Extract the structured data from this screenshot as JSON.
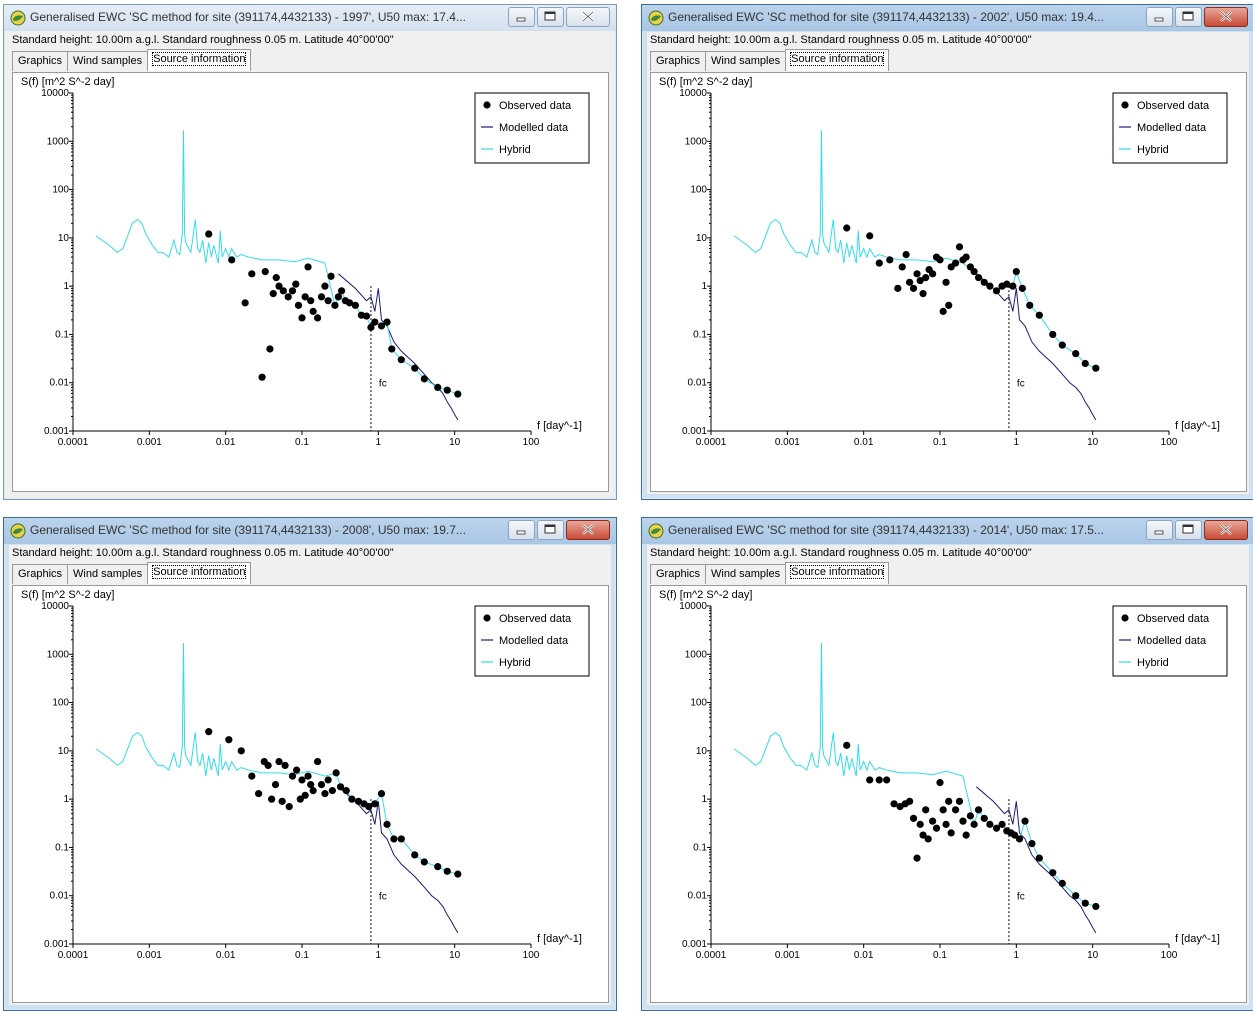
{
  "windows": [
    {
      "id": "w1",
      "title": "Generalised EWC 'SC method for site (391174,4432133) - 1997', U50 max: 17.4...",
      "active": false,
      "info": "Standard height: 10.00m a.g.l. Standard roughness 0.05 m. Latitude 40°00'00\"",
      "tabs": [
        "Graphics",
        "Wind samples",
        "Source information"
      ],
      "selected_tab": "Source information"
    },
    {
      "id": "w2",
      "title": "Generalised EWC 'SC method for site (391174,4432133) - 2002', U50 max: 19.4...",
      "active": true,
      "info": "Standard height: 10.00m a.g.l. Standard roughness 0.05 m. Latitude 40°00'00\"",
      "tabs": [
        "Graphics",
        "Wind samples",
        "Source information"
      ],
      "selected_tab": "Source information"
    },
    {
      "id": "w3",
      "title": "Generalised EWC 'SC method for site (391174,4432133) - 2008', U50 max: 19.7...",
      "active": true,
      "info": "Standard height: 10.00m a.g.l. Standard roughness 0.05 m. Latitude 40°00'00\"",
      "tabs": [
        "Graphics",
        "Wind samples",
        "Source information"
      ],
      "selected_tab": "Source information"
    },
    {
      "id": "w4",
      "title": "Generalised EWC 'SC method for site (391174,4432133) - 2014', U50 max: 17.5...",
      "active": true,
      "info": "Standard height: 10.00m a.g.l. Standard roughness 0.05 m. Latitude 40°00'00\"",
      "tabs": [
        "Graphics",
        "Wind samples",
        "Source information"
      ],
      "selected_tab": "Source information"
    }
  ],
  "chart_common": {
    "ylabel": "S(f) [m^2 S^-2 day]",
    "xlabel": "f [day^-1]",
    "fc_label": "fc",
    "x_ticks": [
      "0.0001",
      "0.001",
      "0.01",
      "0.1",
      "1",
      "10",
      "100"
    ],
    "y_ticks": [
      "0.001",
      "0.01",
      "0.1",
      "1",
      "10",
      "100",
      "1000",
      "10000"
    ],
    "legend": [
      "Observed data",
      "Modelled data",
      "Hybrid"
    ],
    "colors": {
      "observed": "#000000",
      "modelled": "#1a1a7a",
      "hybrid": "#33dde8"
    }
  },
  "chart_data": [
    {
      "type": "scatter",
      "title": "",
      "xlabel": "f [day^-1]",
      "ylabel": "S(f) [m^2 S^-2 day]",
      "x_scale": "log",
      "y_scale": "log",
      "xlim": [
        0.0001,
        100
      ],
      "ylim": [
        0.001,
        10000
      ],
      "fc": 0.8,
      "legend_position": "top-right",
      "series": [
        {
          "name": "Observed data",
          "points": [
            [
              0.006,
              12
            ],
            [
              0.012,
              3.5
            ],
            [
              0.018,
              0.45
            ],
            [
              0.022,
              1.8
            ],
            [
              0.03,
              0.013
            ],
            [
              0.033,
              2
            ],
            [
              0.038,
              0.05
            ],
            [
              0.042,
              0.7
            ],
            [
              0.046,
              1.5
            ],
            [
              0.05,
              1
            ],
            [
              0.057,
              0.8
            ],
            [
              0.066,
              0.6
            ],
            [
              0.075,
              0.8
            ],
            [
              0.083,
              1.1
            ],
            [
              0.09,
              0.4
            ],
            [
              0.1,
              0.22
            ],
            [
              0.11,
              0.6
            ],
            [
              0.12,
              2.5
            ],
            [
              0.13,
              0.5
            ],
            [
              0.14,
              0.3
            ],
            [
              0.16,
              0.22
            ],
            [
              0.18,
              0.6
            ],
            [
              0.2,
              1
            ],
            [
              0.22,
              0.5
            ],
            [
              0.24,
              1.6
            ],
            [
              0.27,
              0.4
            ],
            [
              0.3,
              0.6
            ],
            [
              0.33,
              0.8
            ],
            [
              0.37,
              0.5
            ],
            [
              0.42,
              0.45
            ],
            [
              0.5,
              0.4
            ],
            [
              0.6,
              0.25
            ],
            [
              0.7,
              0.24
            ],
            [
              0.8,
              0.14
            ],
            [
              0.9,
              0.18
            ],
            [
              1.1,
              0.15
            ],
            [
              1.3,
              0.18
            ],
            [
              1.5,
              0.05
            ],
            [
              2,
              0.03
            ],
            [
              3,
              0.02
            ],
            [
              4,
              0.012
            ],
            [
              6,
              0.008
            ],
            [
              8,
              0.007
            ],
            [
              11,
              0.0058
            ]
          ]
        }
      ]
    },
    {
      "type": "scatter",
      "title": "",
      "xlabel": "f [day^-1]",
      "ylabel": "S(f) [m^2 S^-2 day]",
      "x_scale": "log",
      "y_scale": "log",
      "xlim": [
        0.0001,
        100
      ],
      "ylim": [
        0.001,
        10000
      ],
      "fc": 0.8,
      "legend_position": "top-right",
      "series": [
        {
          "name": "Observed data",
          "points": [
            [
              0.006,
              16
            ],
            [
              0.012,
              11
            ],
            [
              0.016,
              3
            ],
            [
              0.022,
              3.5
            ],
            [
              0.028,
              0.9
            ],
            [
              0.032,
              2.5
            ],
            [
              0.036,
              4.5
            ],
            [
              0.04,
              1.2
            ],
            [
              0.045,
              0.9
            ],
            [
              0.05,
              1.8
            ],
            [
              0.055,
              1.3
            ],
            [
              0.06,
              0.7
            ],
            [
              0.065,
              1.5
            ],
            [
              0.072,
              2.2
            ],
            [
              0.08,
              1.8
            ],
            [
              0.09,
              4
            ],
            [
              0.1,
              3.5
            ],
            [
              0.11,
              0.3
            ],
            [
              0.12,
              1.2
            ],
            [
              0.13,
              0.4
            ],
            [
              0.14,
              2.5
            ],
            [
              0.16,
              3
            ],
            [
              0.18,
              6.5
            ],
            [
              0.2,
              3.5
            ],
            [
              0.22,
              4
            ],
            [
              0.25,
              2.5
            ],
            [
              0.28,
              2
            ],
            [
              0.32,
              1.5
            ],
            [
              0.38,
              1.2
            ],
            [
              0.45,
              1
            ],
            [
              0.55,
              0.8
            ],
            [
              0.65,
              1
            ],
            [
              0.75,
              1.1
            ],
            [
              0.9,
              1
            ],
            [
              1,
              2
            ],
            [
              1.2,
              0.9
            ],
            [
              1.5,
              0.4
            ],
            [
              2,
              0.25
            ],
            [
              3,
              0.1
            ],
            [
              4,
              0.06
            ],
            [
              6,
              0.04
            ],
            [
              8,
              0.025
            ],
            [
              11,
              0.02
            ]
          ]
        }
      ]
    },
    {
      "type": "scatter",
      "title": "",
      "xlabel": "f [day^-1]",
      "ylabel": "S(f) [m^2 S^-2 day]",
      "x_scale": "log",
      "y_scale": "log",
      "xlim": [
        0.0001,
        100
      ],
      "ylim": [
        0.001,
        10000
      ],
      "fc": 0.8,
      "legend_position": "top-right",
      "series": [
        {
          "name": "Observed data",
          "points": [
            [
              0.006,
              25
            ],
            [
              0.011,
              17
            ],
            [
              0.016,
              10
            ],
            [
              0.022,
              3
            ],
            [
              0.027,
              1.3
            ],
            [
              0.032,
              6
            ],
            [
              0.036,
              5
            ],
            [
              0.04,
              1
            ],
            [
              0.045,
              2
            ],
            [
              0.05,
              6
            ],
            [
              0.055,
              0.9
            ],
            [
              0.06,
              5
            ],
            [
              0.068,
              0.7
            ],
            [
              0.075,
              3
            ],
            [
              0.085,
              4
            ],
            [
              0.095,
              1
            ],
            [
              0.1,
              2.5
            ],
            [
              0.11,
              1.2
            ],
            [
              0.12,
              3
            ],
            [
              0.13,
              2
            ],
            [
              0.14,
              1.5
            ],
            [
              0.16,
              6
            ],
            [
              0.18,
              2
            ],
            [
              0.2,
              1.3
            ],
            [
              0.22,
              2.5
            ],
            [
              0.25,
              1.5
            ],
            [
              0.28,
              3.5
            ],
            [
              0.32,
              1.8
            ],
            [
              0.38,
              1.5
            ],
            [
              0.45,
              1
            ],
            [
              0.55,
              0.9
            ],
            [
              0.65,
              0.8
            ],
            [
              0.75,
              0.7
            ],
            [
              0.9,
              0.8
            ],
            [
              1.1,
              1.3
            ],
            [
              1.3,
              0.3
            ],
            [
              1.6,
              0.15
            ],
            [
              2,
              0.15
            ],
            [
              3,
              0.07
            ],
            [
              4,
              0.05
            ],
            [
              6,
              0.04
            ],
            [
              8,
              0.032
            ],
            [
              11,
              0.028
            ]
          ]
        }
      ]
    },
    {
      "type": "scatter",
      "title": "",
      "xlabel": "f [day^-1]",
      "ylabel": "S(f) [m^2 S^-2 day]",
      "x_scale": "log",
      "y_scale": "log",
      "xlim": [
        0.0001,
        100
      ],
      "ylim": [
        0.001,
        10000
      ],
      "fc": 0.8,
      "legend_position": "top-right",
      "series": [
        {
          "name": "Observed data",
          "points": [
            [
              0.006,
              13
            ],
            [
              0.012,
              2.5
            ],
            [
              0.016,
              2.5
            ],
            [
              0.02,
              2.5
            ],
            [
              0.025,
              0.8
            ],
            [
              0.03,
              0.7
            ],
            [
              0.035,
              0.8
            ],
            [
              0.04,
              0.9
            ],
            [
              0.045,
              0.4
            ],
            [
              0.05,
              0.06
            ],
            [
              0.055,
              0.3
            ],
            [
              0.06,
              0.18
            ],
            [
              0.065,
              0.6
            ],
            [
              0.07,
              0.15
            ],
            [
              0.08,
              0.35
            ],
            [
              0.09,
              0.25
            ],
            [
              0.1,
              2.2
            ],
            [
              0.11,
              0.6
            ],
            [
              0.12,
              0.3
            ],
            [
              0.13,
              0.9
            ],
            [
              0.14,
              0.2
            ],
            [
              0.16,
              0.6
            ],
            [
              0.18,
              0.9
            ],
            [
              0.2,
              0.35
            ],
            [
              0.22,
              0.18
            ],
            [
              0.25,
              0.45
            ],
            [
              0.28,
              0.3
            ],
            [
              0.32,
              0.6
            ],
            [
              0.38,
              0.4
            ],
            [
              0.45,
              0.3
            ],
            [
              0.55,
              0.25
            ],
            [
              0.65,
              0.3
            ],
            [
              0.75,
              0.22
            ],
            [
              0.85,
              0.2
            ],
            [
              0.95,
              0.18
            ],
            [
              1.1,
              0.15
            ],
            [
              1.3,
              0.35
            ],
            [
              1.6,
              0.12
            ],
            [
              2,
              0.06
            ],
            [
              3,
              0.03
            ],
            [
              4,
              0.018
            ],
            [
              6,
              0.01
            ],
            [
              8,
              0.007
            ],
            [
              11,
              0.006
            ]
          ]
        }
      ]
    }
  ]
}
